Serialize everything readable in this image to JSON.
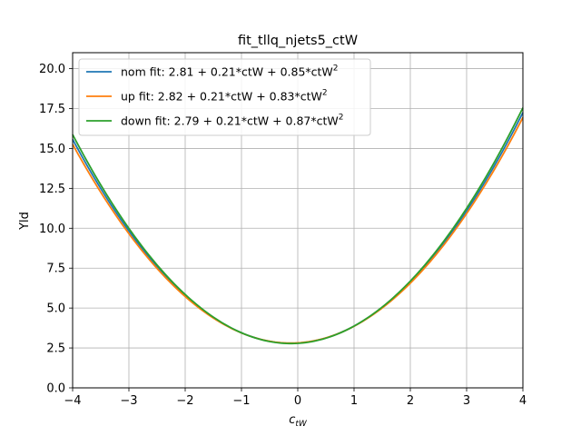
{
  "chart_data": {
    "type": "line",
    "title": "fit_tllq_njets5_ctW",
    "xlabel": "c",
    "xlabel_sub": "tW",
    "ylabel": "Yld",
    "xlim": [
      -4,
      4
    ],
    "ylim": [
      0,
      21
    ],
    "grid": true,
    "legend_position": "top-left",
    "x_ticks": [
      -4,
      -3,
      -2,
      -1,
      0,
      1,
      2,
      3,
      4
    ],
    "x_tick_labels": [
      "−4",
      "−3",
      "−2",
      "−1",
      "0",
      "1",
      "2",
      "3",
      "4"
    ],
    "y_ticks": [
      0,
      2.5,
      5,
      7.5,
      10,
      12.5,
      15,
      17.5,
      20
    ],
    "y_tick_labels": [
      "0.0",
      "2.5",
      "5.0",
      "7.5",
      "10.0",
      "12.5",
      "15.0",
      "17.5",
      "20.0"
    ],
    "series": [
      {
        "name": "nom fit: 2.81 + 0.21*ctW + 0.85*ctW",
        "name_sup": "2",
        "color": "#1f77b4",
        "coefficients": [
          2.81,
          0.21,
          0.85
        ]
      },
      {
        "name": "up fit: 2.82 + 0.21*ctW + 0.83*ctW",
        "name_sup": "2",
        "color": "#ff7f0e",
        "coefficients": [
          2.82,
          0.21,
          0.83
        ]
      },
      {
        "name": "down fit: 2.79 + 0.21*ctW + 0.87*ctW",
        "name_sup": "2",
        "color": "#2ca02c",
        "coefficients": [
          2.79,
          0.21,
          0.87
        ]
      }
    ]
  }
}
